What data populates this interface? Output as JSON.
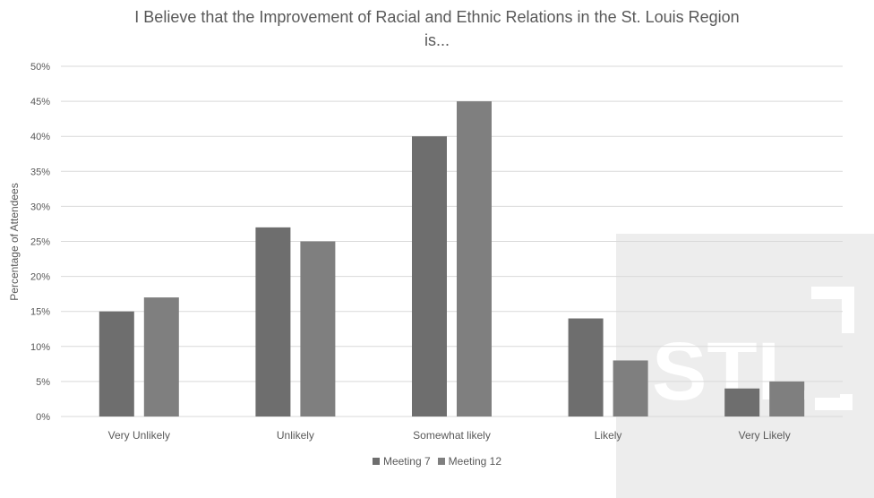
{
  "chart_data": {
    "type": "bar",
    "title": "I Believe that the Improvement of Racial and Ethnic Relations in the St. Louis Region is...",
    "title_lines": [
      "I Believe that the Improvement of Racial and Ethnic Relations in the St. Louis Region",
      "is..."
    ],
    "xlabel": "",
    "ylabel": "Percentage of Attendees",
    "categories": [
      "Very Unlikely",
      "Unlikely",
      "Somewhat likely",
      "Likely",
      "Very Likely"
    ],
    "series": [
      {
        "name": "Meeting 7",
        "values": [
          15,
          27,
          40,
          14,
          4
        ],
        "color": "#6e6e6e"
      },
      {
        "name": "Meeting 12",
        "values": [
          17,
          25,
          45,
          8,
          5
        ],
        "color": "#7f7f7f"
      }
    ],
    "ylim": [
      0,
      50
    ],
    "ytick_step": 5,
    "ytick_labels": [
      "0%",
      "5%",
      "10%",
      "15%",
      "20%",
      "25%",
      "30%",
      "35%",
      "40%",
      "45%",
      "50%"
    ],
    "grid": true,
    "legend_position": "bottom-center"
  },
  "colors": {
    "text": "#595959",
    "gridline": "#d9d9d9",
    "watermark_panel": "#ededed",
    "watermark_mark": "#ffffff"
  },
  "watermark": {
    "text": "STL"
  }
}
